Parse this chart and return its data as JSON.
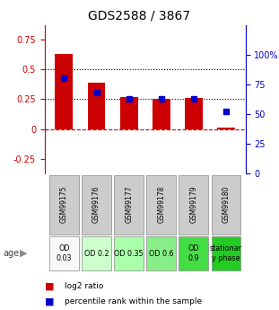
{
  "title": "GDS2588 / 3867",
  "samples": [
    "GSM99175",
    "GSM99176",
    "GSM99177",
    "GSM99178",
    "GSM99179",
    "GSM99180"
  ],
  "log2_ratio": [
    0.63,
    0.39,
    0.27,
    0.25,
    0.26,
    0.01
  ],
  "percentile_rank": [
    80,
    68,
    63,
    63,
    63,
    52
  ],
  "bar_color": "#cc0000",
  "dot_color": "#0000cc",
  "left_ylim": [
    -0.375,
    0.875
  ],
  "right_ylim": [
    0,
    125
  ],
  "left_yticks": [
    -0.25,
    0.0,
    0.25,
    0.5,
    0.75
  ],
  "right_yticks": [
    0,
    25,
    50,
    75,
    100
  ],
  "age_labels": [
    "OD\n0.03",
    "OD 0.2",
    "OD 0.35",
    "OD 0.6",
    "OD\n0.9",
    "stationar\ny phase"
  ],
  "age_bg_colors": [
    "#f8f8f8",
    "#ccffcc",
    "#aaffaa",
    "#88ee88",
    "#44dd44",
    "#22cc22"
  ],
  "legend_items": [
    "log2 ratio",
    "percentile rank within the sample"
  ],
  "legend_colors": [
    "#cc0000",
    "#0000cc"
  ],
  "bar_width": 0.55
}
